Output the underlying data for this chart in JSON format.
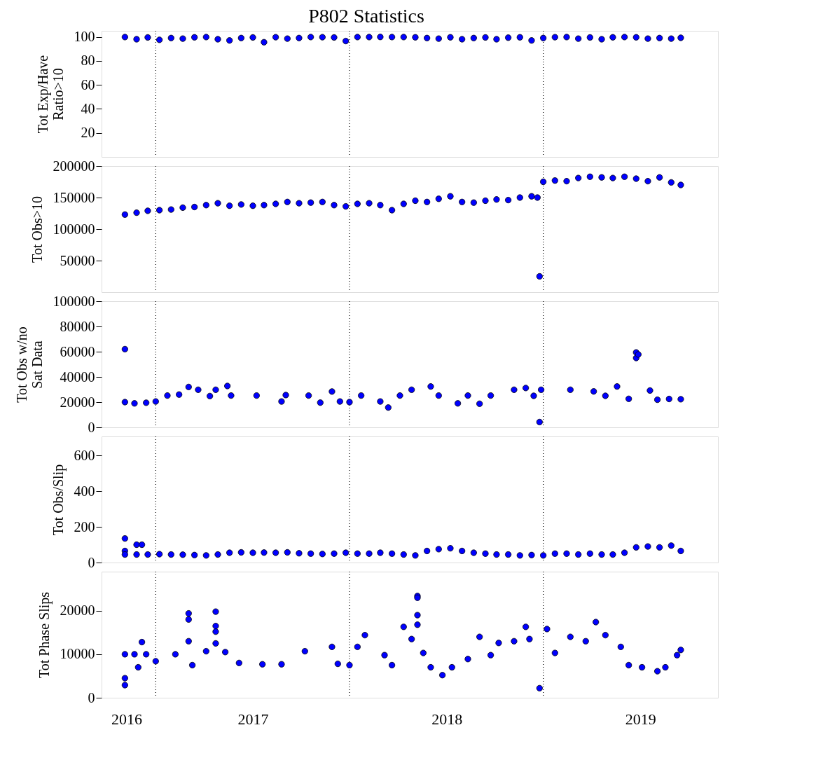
{
  "chart_data": [
    {
      "type": "scatter",
      "title": "P802 Statistics",
      "ylabel": "Tot Exp/Have\nRatio>10",
      "marker": "circle",
      "tick_labels": "y",
      "xlim": [
        "2016-09-21",
        "2019-11-26"
      ],
      "ylim": [
        0,
        105
      ],
      "yticks": [
        20,
        40,
        60,
        80,
        100
      ],
      "ref_lines": [
        {
          "axis": "x",
          "value": "2017-01-01",
          "line_style": "dotted",
          "color": "#000000"
        },
        {
          "axis": "x",
          "value": "2018-01-01",
          "line_style": "dotted",
          "color": "#000000"
        },
        {
          "axis": "x",
          "value": "2019-01-01",
          "line_style": "dotted",
          "color": "#000000"
        }
      ],
      "x": [
        "2016-11-04",
        "2016-11-26",
        "2016-12-17",
        "2017-01-08",
        "2017-01-30",
        "2017-02-21",
        "2017-03-15",
        "2017-04-06",
        "2017-04-28",
        "2017-05-20",
        "2017-06-11",
        "2017-07-03",
        "2017-07-24",
        "2017-08-15",
        "2017-09-06",
        "2017-09-28",
        "2017-10-20",
        "2017-11-11",
        "2017-12-03",
        "2017-12-25",
        "2018-01-16",
        "2018-02-07",
        "2018-02-28",
        "2018-03-22",
        "2018-04-13",
        "2018-05-05",
        "2018-05-27",
        "2018-06-18",
        "2018-07-10",
        "2018-08-01",
        "2018-08-23",
        "2018-09-14",
        "2018-10-05",
        "2018-10-27",
        "2018-11-18",
        "2018-12-10",
        "2019-01-01",
        "2019-01-23",
        "2019-02-14",
        "2019-03-08",
        "2019-03-30",
        "2019-04-21",
        "2019-05-12",
        "2019-06-03",
        "2019-06-25",
        "2019-07-17",
        "2019-08-08",
        "2019-08-30",
        "2019-09-17"
      ],
      "series": [
        {
          "color": "#0000ff",
          "values": [
            99.8,
            98,
            99.5,
            97.5,
            99,
            98.5,
            99.6,
            99.8,
            98,
            97,
            99,
            99.5,
            95.5,
            99.7,
            98.5,
            99,
            99.8,
            99.7,
            99.5,
            96.5,
            99.8,
            99.8,
            99.9,
            99.8,
            99.8,
            99.6,
            99,
            98.5,
            99.6,
            98,
            99,
            99.5,
            98,
            99.3,
            99.6,
            97,
            99,
            99.7,
            99.8,
            98.5,
            99.5,
            98,
            99.6,
            99.8,
            99.6,
            98.5,
            99,
            98.5,
            99.2
          ]
        }
      ]
    },
    {
      "type": "scatter",
      "ylabel": "Tot Obs>10",
      "marker": "circle",
      "tick_labels": "y",
      "xlim": [
        "2016-09-21",
        "2019-11-26"
      ],
      "ylim": [
        0,
        200000
      ],
      "yticks": [
        50000,
        100000,
        150000,
        200000
      ],
      "ref_lines": [
        {
          "axis": "x",
          "value": "2017-01-01",
          "line_style": "dotted",
          "color": "#000000"
        },
        {
          "axis": "x",
          "value": "2018-01-01",
          "line_style": "dotted",
          "color": "#000000"
        },
        {
          "axis": "x",
          "value": "2019-01-01",
          "line_style": "dotted",
          "color": "#000000"
        }
      ],
      "x": [
        "2016-11-04",
        "2016-11-26",
        "2016-12-17",
        "2017-01-08",
        "2017-01-30",
        "2017-02-21",
        "2017-03-15",
        "2017-04-06",
        "2017-04-28",
        "2017-05-20",
        "2017-06-11",
        "2017-07-03",
        "2017-07-24",
        "2017-08-15",
        "2017-09-06",
        "2017-09-28",
        "2017-10-20",
        "2017-11-11",
        "2017-12-03",
        "2017-12-25",
        "2018-01-16",
        "2018-02-07",
        "2018-02-28",
        "2018-03-22",
        "2018-04-13",
        "2018-05-05",
        "2018-05-27",
        "2018-06-18",
        "2018-07-10",
        "2018-08-01",
        "2018-08-23",
        "2018-09-14",
        "2018-10-05",
        "2018-10-27",
        "2018-11-18",
        "2018-12-10",
        "2018-12-21",
        "2018-12-25",
        "2019-01-01",
        "2019-01-23",
        "2019-02-14",
        "2019-03-08",
        "2019-03-30",
        "2019-04-21",
        "2019-05-12",
        "2019-06-03",
        "2019-06-25",
        "2019-07-17",
        "2019-08-08",
        "2019-08-30",
        "2019-09-17"
      ],
      "series": [
        {
          "color": "#0000ff",
          "values": [
            123000,
            126000,
            129000,
            130000,
            131000,
            134000,
            135000,
            138000,
            141000,
            137000,
            139000,
            137000,
            138000,
            140000,
            143000,
            141000,
            142000,
            143000,
            138000,
            136000,
            140000,
            141000,
            138000,
            130000,
            140000,
            145000,
            143000,
            148000,
            152000,
            143000,
            142000,
            145000,
            147000,
            146000,
            150000,
            152000,
            150000,
            25000,
            175000,
            177000,
            176000,
            181000,
            183000,
            182000,
            181000,
            183000,
            180000,
            176000,
            182000,
            174000,
            170000
          ]
        }
      ]
    },
    {
      "type": "scatter",
      "ylabel": "Tot Obs w/no\nSat Data",
      "marker": "circle",
      "tick_labels": "y",
      "xlim": [
        "2016-09-21",
        "2019-11-26"
      ],
      "ylim": [
        0,
        100000
      ],
      "yticks": [
        0,
        20000,
        40000,
        60000,
        80000,
        100000
      ],
      "ref_lines": [
        {
          "axis": "x",
          "value": "2017-01-01",
          "line_style": "dotted",
          "color": "#000000"
        },
        {
          "axis": "x",
          "value": "2018-01-01",
          "line_style": "dotted",
          "color": "#000000"
        },
        {
          "axis": "x",
          "value": "2019-01-01",
          "line_style": "dotted",
          "color": "#000000"
        }
      ],
      "x": [
        "2016-11-04",
        "2016-11-04",
        "2016-11-22",
        "2016-12-14",
        "2017-01-01",
        "2017-01-23",
        "2017-02-14",
        "2017-03-04",
        "2017-03-22",
        "2017-04-13",
        "2017-04-24",
        "2017-05-16",
        "2017-05-23",
        "2017-07-10",
        "2017-08-26",
        "2017-09-03",
        "2017-10-16",
        "2017-11-07",
        "2017-11-29",
        "2017-12-14",
        "2018-01-01",
        "2018-01-23",
        "2018-02-28",
        "2018-03-15",
        "2018-04-06",
        "2018-04-28",
        "2018-06-03",
        "2018-06-18",
        "2018-07-24",
        "2018-08-12",
        "2018-09-03",
        "2018-09-24",
        "2018-11-07",
        "2018-11-29",
        "2018-12-14",
        "2018-12-25",
        "2018-12-28",
        "2019-02-21",
        "2019-04-06",
        "2019-04-28",
        "2019-05-20",
        "2019-06-11",
        "2019-06-25",
        "2019-06-25",
        "2019-06-29",
        "2019-07-21",
        "2019-08-04",
        "2019-08-26",
        "2019-09-17"
      ],
      "series": [
        {
          "color": "#0000ff",
          "values": [
            62000,
            20000,
            19000,
            19500,
            20500,
            25200,
            26000,
            32000,
            29800,
            24800,
            29800,
            32800,
            25200,
            25200,
            20500,
            25600,
            25200,
            19600,
            28400,
            20500,
            20000,
            25200,
            20500,
            15700,
            25200,
            29800,
            32400,
            25200,
            19000,
            25200,
            18700,
            25200,
            29800,
            31200,
            25000,
            4200,
            29800,
            29800,
            28500,
            25000,
            32400,
            22600,
            55000,
            59400,
            57800,
            29200,
            21900,
            22500,
            22300
          ]
        }
      ]
    },
    {
      "type": "scatter",
      "ylabel": "Tot Obs/Slip",
      "marker": "circle",
      "tick_labels": "y",
      "xlim": [
        "2016-09-21",
        "2019-11-26"
      ],
      "ylim": [
        0,
        707
      ],
      "yticks": [
        0,
        200,
        400,
        600
      ],
      "ref_lines": [
        {
          "axis": "x",
          "value": "2017-01-01",
          "line_style": "dotted",
          "color": "#000000"
        },
        {
          "axis": "x",
          "value": "2018-01-01",
          "line_style": "dotted",
          "color": "#000000"
        },
        {
          "axis": "x",
          "value": "2019-01-01",
          "line_style": "dotted",
          "color": "#000000"
        }
      ],
      "x": [
        "2016-11-04",
        "2016-11-04",
        "2016-11-04",
        "2016-11-26",
        "2016-12-06",
        "2016-11-26",
        "2016-12-17",
        "2017-01-08",
        "2017-01-30",
        "2017-02-21",
        "2017-03-15",
        "2017-04-06",
        "2017-04-28",
        "2017-05-20",
        "2017-06-11",
        "2017-07-03",
        "2017-07-24",
        "2017-08-15",
        "2017-09-06",
        "2017-09-28",
        "2017-10-20",
        "2017-11-11",
        "2017-12-03",
        "2017-12-25",
        "2018-01-16",
        "2018-02-07",
        "2018-02-28",
        "2018-03-22",
        "2018-04-13",
        "2018-05-05",
        "2018-05-27",
        "2018-06-18",
        "2018-07-10",
        "2018-08-01",
        "2018-08-23",
        "2018-09-14",
        "2018-10-05",
        "2018-10-27",
        "2018-11-18",
        "2018-12-10",
        "2019-01-01",
        "2019-01-23",
        "2019-02-14",
        "2019-03-08",
        "2019-03-30",
        "2019-04-21",
        "2019-05-12",
        "2019-06-03",
        "2019-06-25",
        "2019-07-17",
        "2019-08-08",
        "2019-08-30",
        "2019-09-17"
      ],
      "series": [
        {
          "color": "#0000ff",
          "values": [
            135,
            65,
            45,
            100,
            100,
            45,
            45,
            47,
            45,
            44,
            42,
            40,
            45,
            55,
            57,
            55,
            56,
            55,
            57,
            52,
            50,
            48,
            50,
            55,
            50,
            50,
            55,
            50,
            45,
            40,
            65,
            75,
            80,
            65,
            55,
            50,
            45,
            45,
            40,
            42,
            40,
            50,
            50,
            45,
            50,
            45,
            45,
            55,
            85,
            90,
            85,
            95,
            65
          ]
        }
      ]
    },
    {
      "type": "scatter",
      "ylabel": "Tot Phase Slips",
      "marker": "circle",
      "xlim": [
        "2016-09-21",
        "2019-11-26"
      ],
      "ylim": [
        0,
        29000
      ],
      "yticks": [
        0,
        10000,
        20000
      ],
      "xticks": [
        {
          "value": "2016-11-07",
          "label": "2016"
        },
        {
          "value": "2017-07-03",
          "label": "2017"
        },
        {
          "value": "2018-07-03",
          "label": "2018"
        },
        {
          "value": "2019-07-03",
          "label": "2019"
        }
      ],
      "ref_lines": [
        {
          "axis": "x",
          "value": "2017-01-01",
          "line_style": "dotted",
          "color": "#000000"
        },
        {
          "axis": "x",
          "value": "2018-01-01",
          "line_style": "dotted",
          "color": "#000000"
        },
        {
          "axis": "x",
          "value": "2019-01-01",
          "line_style": "dotted",
          "color": "#000000"
        }
      ],
      "x": [
        "2016-11-04",
        "2016-11-04",
        "2016-11-04",
        "2016-11-22",
        "2016-11-29",
        "2016-12-06",
        "2016-12-14",
        "2017-01-01",
        "2017-02-07",
        "2017-03-04",
        "2017-03-04",
        "2017-03-04",
        "2017-03-11",
        "2017-04-06",
        "2017-04-24",
        "2017-04-24",
        "2017-04-24",
        "2017-04-24",
        "2017-05-12",
        "2017-06-07",
        "2017-07-21",
        "2017-08-26",
        "2017-10-09",
        "2017-11-29",
        "2017-12-10",
        "2018-01-01",
        "2018-01-16",
        "2018-01-30",
        "2018-03-08",
        "2018-03-22",
        "2018-04-13",
        "2018-04-28",
        "2018-05-09",
        "2018-05-09",
        "2018-05-09",
        "2018-05-09",
        "2018-05-20",
        "2018-06-03",
        "2018-06-25",
        "2018-07-13",
        "2018-08-12",
        "2018-09-03",
        "2018-09-24",
        "2018-10-09",
        "2018-11-07",
        "2018-11-29",
        "2018-12-06",
        "2018-12-25",
        "2019-01-08",
        "2019-01-23",
        "2019-02-21",
        "2019-03-22",
        "2019-04-10",
        "2019-04-28",
        "2019-05-27",
        "2019-06-11",
        "2019-07-06",
        "2019-08-04",
        "2019-08-19",
        "2019-09-10",
        "2019-09-17"
      ],
      "series": [
        {
          "color": "#0000ff",
          "values": [
            10000,
            4500,
            2900,
            10000,
            7000,
            12800,
            10000,
            8400,
            10000,
            19400,
            18000,
            13000,
            7500,
            10700,
            19800,
            16500,
            15200,
            12500,
            10500,
            8000,
            7700,
            7700,
            10700,
            11700,
            7800,
            7500,
            11700,
            14400,
            9800,
            7500,
            16300,
            13500,
            23400,
            23000,
            19000,
            16800,
            10300,
            7000,
            5200,
            7000,
            8900,
            14000,
            9800,
            12600,
            13000,
            16300,
            13500,
            2200,
            15800,
            10300,
            14000,
            13000,
            17400,
            14400,
            11700,
            7500,
            7000,
            6100,
            7000,
            9800,
            11000
          ]
        }
      ]
    }
  ]
}
